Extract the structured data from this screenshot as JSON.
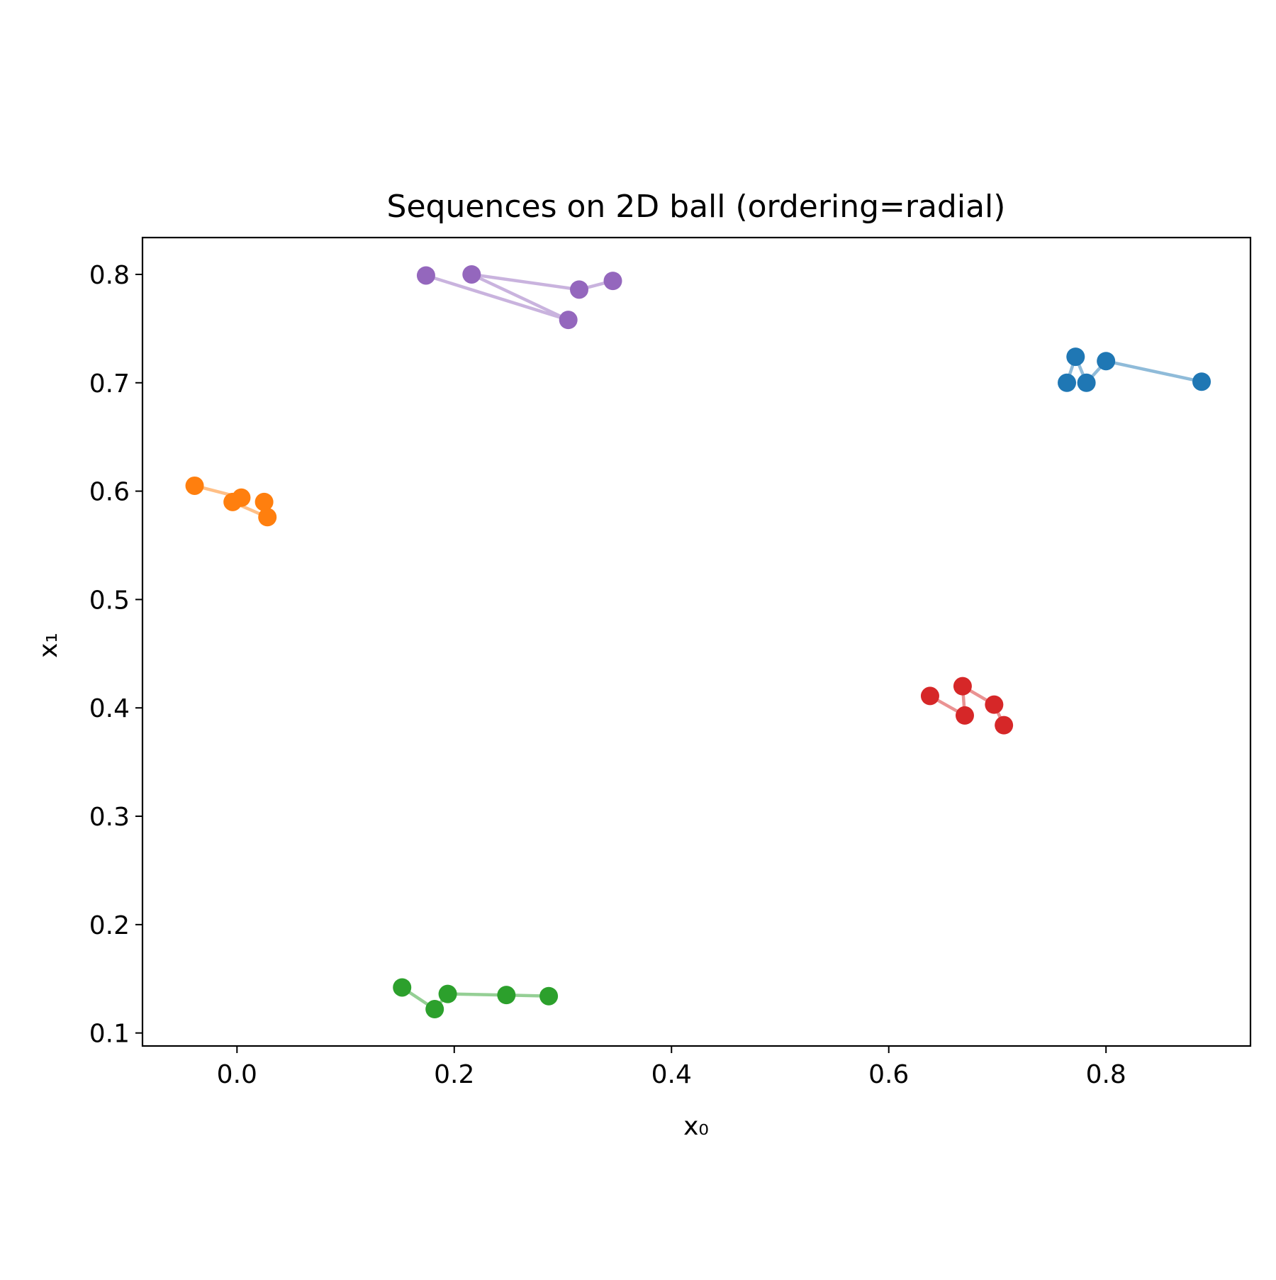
{
  "chart_data": {
    "type": "line",
    "title": "Sequences on 2D ball (ordering=radial)",
    "xlabel": "x₀",
    "ylabel": "x₁",
    "xlim": [
      -0.087,
      0.933
    ],
    "ylim": [
      0.088,
      0.834
    ],
    "xticks": [
      0.0,
      0.2,
      0.4,
      0.6,
      0.8
    ],
    "xtick_labels": [
      "0.0",
      "0.2",
      "0.4",
      "0.6",
      "0.8"
    ],
    "yticks": [
      0.1,
      0.2,
      0.3,
      0.4,
      0.5,
      0.6,
      0.7,
      0.8
    ],
    "ytick_labels": [
      "0.1",
      "0.2",
      "0.3",
      "0.4",
      "0.5",
      "0.6",
      "0.7",
      "0.8"
    ],
    "grid": false,
    "legend": "none",
    "series": [
      {
        "color": "#1f77b4",
        "points": [
          [
            0.764,
            0.7
          ],
          [
            0.772,
            0.724
          ],
          [
            0.782,
            0.7
          ],
          [
            0.8,
            0.72
          ],
          [
            0.888,
            0.701
          ]
        ]
      },
      {
        "color": "#ff7f0e",
        "points": [
          [
            -0.039,
            0.605
          ],
          [
            0.004,
            0.594
          ],
          [
            -0.004,
            0.59
          ],
          [
            0.028,
            0.576
          ],
          [
            0.025,
            0.59
          ]
        ]
      },
      {
        "color": "#2ca02c",
        "points": [
          [
            0.152,
            0.142
          ],
          [
            0.182,
            0.122
          ],
          [
            0.194,
            0.136
          ],
          [
            0.248,
            0.135
          ],
          [
            0.287,
            0.134
          ]
        ]
      },
      {
        "color": "#d62728",
        "points": [
          [
            0.638,
            0.411
          ],
          [
            0.67,
            0.393
          ],
          [
            0.668,
            0.42
          ],
          [
            0.697,
            0.403
          ],
          [
            0.706,
            0.384
          ]
        ]
      },
      {
        "color": "#9467bd",
        "points": [
          [
            0.346,
            0.794
          ],
          [
            0.315,
            0.786
          ],
          [
            0.216,
            0.8
          ],
          [
            0.305,
            0.758
          ],
          [
            0.174,
            0.799
          ]
        ]
      }
    ]
  }
}
